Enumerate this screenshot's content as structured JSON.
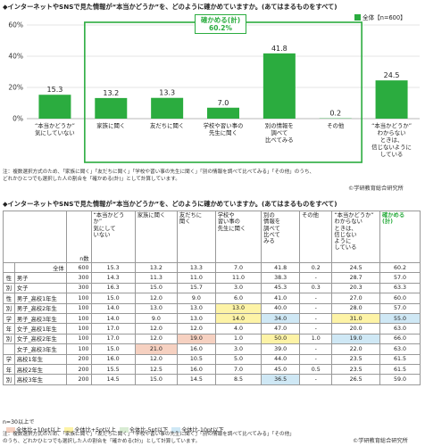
{
  "chart_title": "◆インターネットやSNSで見た情報が“本当かどうか”を、どのように確かめていますか。(あてはまるものをすべて)",
  "legend_label": "全体【n=600】",
  "bracket_label_1": "確かめる(計)",
  "bracket_label_2": "60.2%",
  "chart_data": {
    "type": "bar",
    "categories": [
      "“本当かどうか” 気にしていない",
      "家族に聞く",
      "友だちに聞く",
      "学校や習い事の 先生に聞く",
      "別の情報を 調べて 比べてみる",
      "その他",
      "“本当かどうか” わからない ときは、 信じないように している"
    ],
    "values": [
      15.3,
      13.2,
      13.3,
      7.0,
      41.8,
      0.2,
      24.5
    ],
    "ylim": [
      0,
      60
    ],
    "yticks": [
      "0%",
      "20%",
      "40%",
      "60%"
    ],
    "color": "#2bac3f"
  },
  "cat_lines": [
    [
      "“本当かどうか”",
      "気にしていない"
    ],
    [
      "家族に聞く"
    ],
    [
      "友だちに聞く"
    ],
    [
      "学校や習い事の",
      "先生に聞く"
    ],
    [
      "別の情報を",
      "調べて",
      "比べてみる"
    ],
    [
      "その他"
    ],
    [
      "“本当かどうか”",
      "わからない",
      "ときは、",
      "信じないように",
      "している"
    ]
  ],
  "note1": "注：複数選択方式のため、「家族に聞く」「友だちに聞く」「学校や習い事の先生に聞く」「別の情報を調べて比べてみる」「その他」のうち、",
  "note2": "どれかひとつでも選択した人の割合を「確かめる(計)」として計算しています。",
  "credit1": "©学研教育総合研究所",
  "table_title": "◆インターネットやSNSで見た情報が“本当かどうか”を、どのように確かめていますか。(あてはまるものをすべて)",
  "n_header": "n数",
  "table_headers": [
    [
      "“本当かどうか”",
      "気にして",
      "いない"
    ],
    [
      "家族に聞く"
    ],
    [
      "友だちに",
      "聞く"
    ],
    [
      "学校や",
      "習い事の",
      "先生に聞く"
    ],
    [
      "別の",
      "情報を",
      "調べて",
      "比べて",
      "みる"
    ],
    [
      "その他"
    ],
    [
      "“本当かどうか”",
      "わからない",
      "ときは、",
      "信じない",
      "ように",
      "している"
    ],
    [
      "確かめる",
      "(計)"
    ]
  ],
  "rows": [
    {
      "g": "",
      "label": "全体",
      "n": "600",
      "v": [
        "15.3",
        "13.2",
        "13.3",
        "7.0",
        "41.8",
        "0.2",
        "24.5",
        "60.2"
      ],
      "h": [
        "",
        "",
        "",
        "",
        "",
        "",
        "",
        ""
      ]
    },
    {
      "g": "性",
      "label": "男子",
      "n": "300",
      "v": [
        "14.3",
        "11.3",
        "11.0",
        "11.0",
        "38.3",
        "-",
        "28.7",
        "57.0"
      ],
      "h": [
        "",
        "",
        "",
        "",
        "",
        "",
        "",
        ""
      ]
    },
    {
      "g": "別",
      "label": "女子",
      "n": "300",
      "v": [
        "16.3",
        "15.0",
        "15.7",
        "3.0",
        "45.3",
        "0.3",
        "20.3",
        "63.3"
      ],
      "h": [
        "",
        "",
        "",
        "",
        "",
        "",
        "",
        ""
      ]
    },
    {
      "g": "性",
      "label": "男子_高校1年生",
      "n": "100",
      "v": [
        "15.0",
        "12.0",
        "9.0",
        "6.0",
        "41.0",
        "-",
        "27.0",
        "60.0"
      ],
      "h": [
        "",
        "",
        "",
        "",
        "",
        "",
        "",
        ""
      ]
    },
    {
      "g": "別",
      "label": "男子_高校2年生",
      "n": "100",
      "v": [
        "14.0",
        "13.0",
        "13.0",
        "13.0",
        "40.0",
        "-",
        "28.0",
        "57.0"
      ],
      "h": [
        "",
        "",
        "",
        "y",
        "",
        "",
        "",
        ""
      ]
    },
    {
      "g": "学",
      "label": "男子_高校3年生",
      "n": "100",
      "v": [
        "14.0",
        "9.0",
        "13.0",
        "14.0",
        "34.0",
        "-",
        "31.0",
        "55.0"
      ],
      "h": [
        "",
        "",
        "",
        "y",
        "b",
        "",
        "y",
        "b"
      ]
    },
    {
      "g": "年",
      "label": "女子_高校1年生",
      "n": "100",
      "v": [
        "17.0",
        "12.0",
        "12.0",
        "4.0",
        "47.0",
        "-",
        "20.0",
        "63.0"
      ],
      "h": [
        "",
        "",
        "",
        "",
        "",
        "",
        "",
        ""
      ]
    },
    {
      "g": "別",
      "label": "女子_高校2年生",
      "n": "100",
      "v": [
        "17.0",
        "12.0",
        "19.0",
        "1.0",
        "50.0",
        "1.0",
        "19.0",
        "66.0"
      ],
      "h": [
        "",
        "",
        "p",
        "",
        "y",
        "",
        "b",
        ""
      ]
    },
    {
      "g": "",
      "label": "女子_高校3年生",
      "n": "100",
      "v": [
        "15.0",
        "21.0",
        "16.0",
        "3.0",
        "39.0",
        "-",
        "22.0",
        "63.0"
      ],
      "h": [
        "",
        "p",
        "",
        "",
        "",
        "",
        "",
        ""
      ]
    },
    {
      "g": "学",
      "label": "高校1年生",
      "n": "200",
      "v": [
        "16.0",
        "12.0",
        "10.5",
        "5.0",
        "44.0",
        "-",
        "23.5",
        "61.5"
      ],
      "h": [
        "",
        "",
        "",
        "",
        "",
        "",
        "",
        ""
      ]
    },
    {
      "g": "年",
      "label": "高校2年生",
      "n": "200",
      "v": [
        "15.5",
        "12.5",
        "16.0",
        "7.0",
        "45.0",
        "0.5",
        "23.5",
        "61.5"
      ],
      "h": [
        "",
        "",
        "",
        "",
        "",
        "",
        "",
        ""
      ]
    },
    {
      "g": "別",
      "label": "高校3年生",
      "n": "200",
      "v": [
        "14.5",
        "15.0",
        "14.5",
        "8.5",
        "36.5",
        "-",
        "26.5",
        "59.0"
      ],
      "h": [
        "",
        "",
        "",
        "",
        "b",
        "",
        "",
        ""
      ]
    }
  ],
  "small_n": "n=30以上で",
  "legend2": [
    "全体比+10pt以上",
    "全体比+5pt以上",
    "全体比-5pt以下",
    "全体比-10pt以下"
  ],
  "legend2_colors": [
    "#f6d1c1",
    "#fdf3a6",
    "#d8ecd3",
    "#cfe8f5"
  ],
  "note3": "注：複数選択方式のため、「家族に聞く」「友だちに聞く」「学校や習い事の先生に聞く」「別の情報を調べて比べてみる」「その他」",
  "note4": "のうち、どれかひとつでも選択した人の割合を「確かめる(計)」として計算しています。",
  "credit2": "©学研教育総合研究所"
}
